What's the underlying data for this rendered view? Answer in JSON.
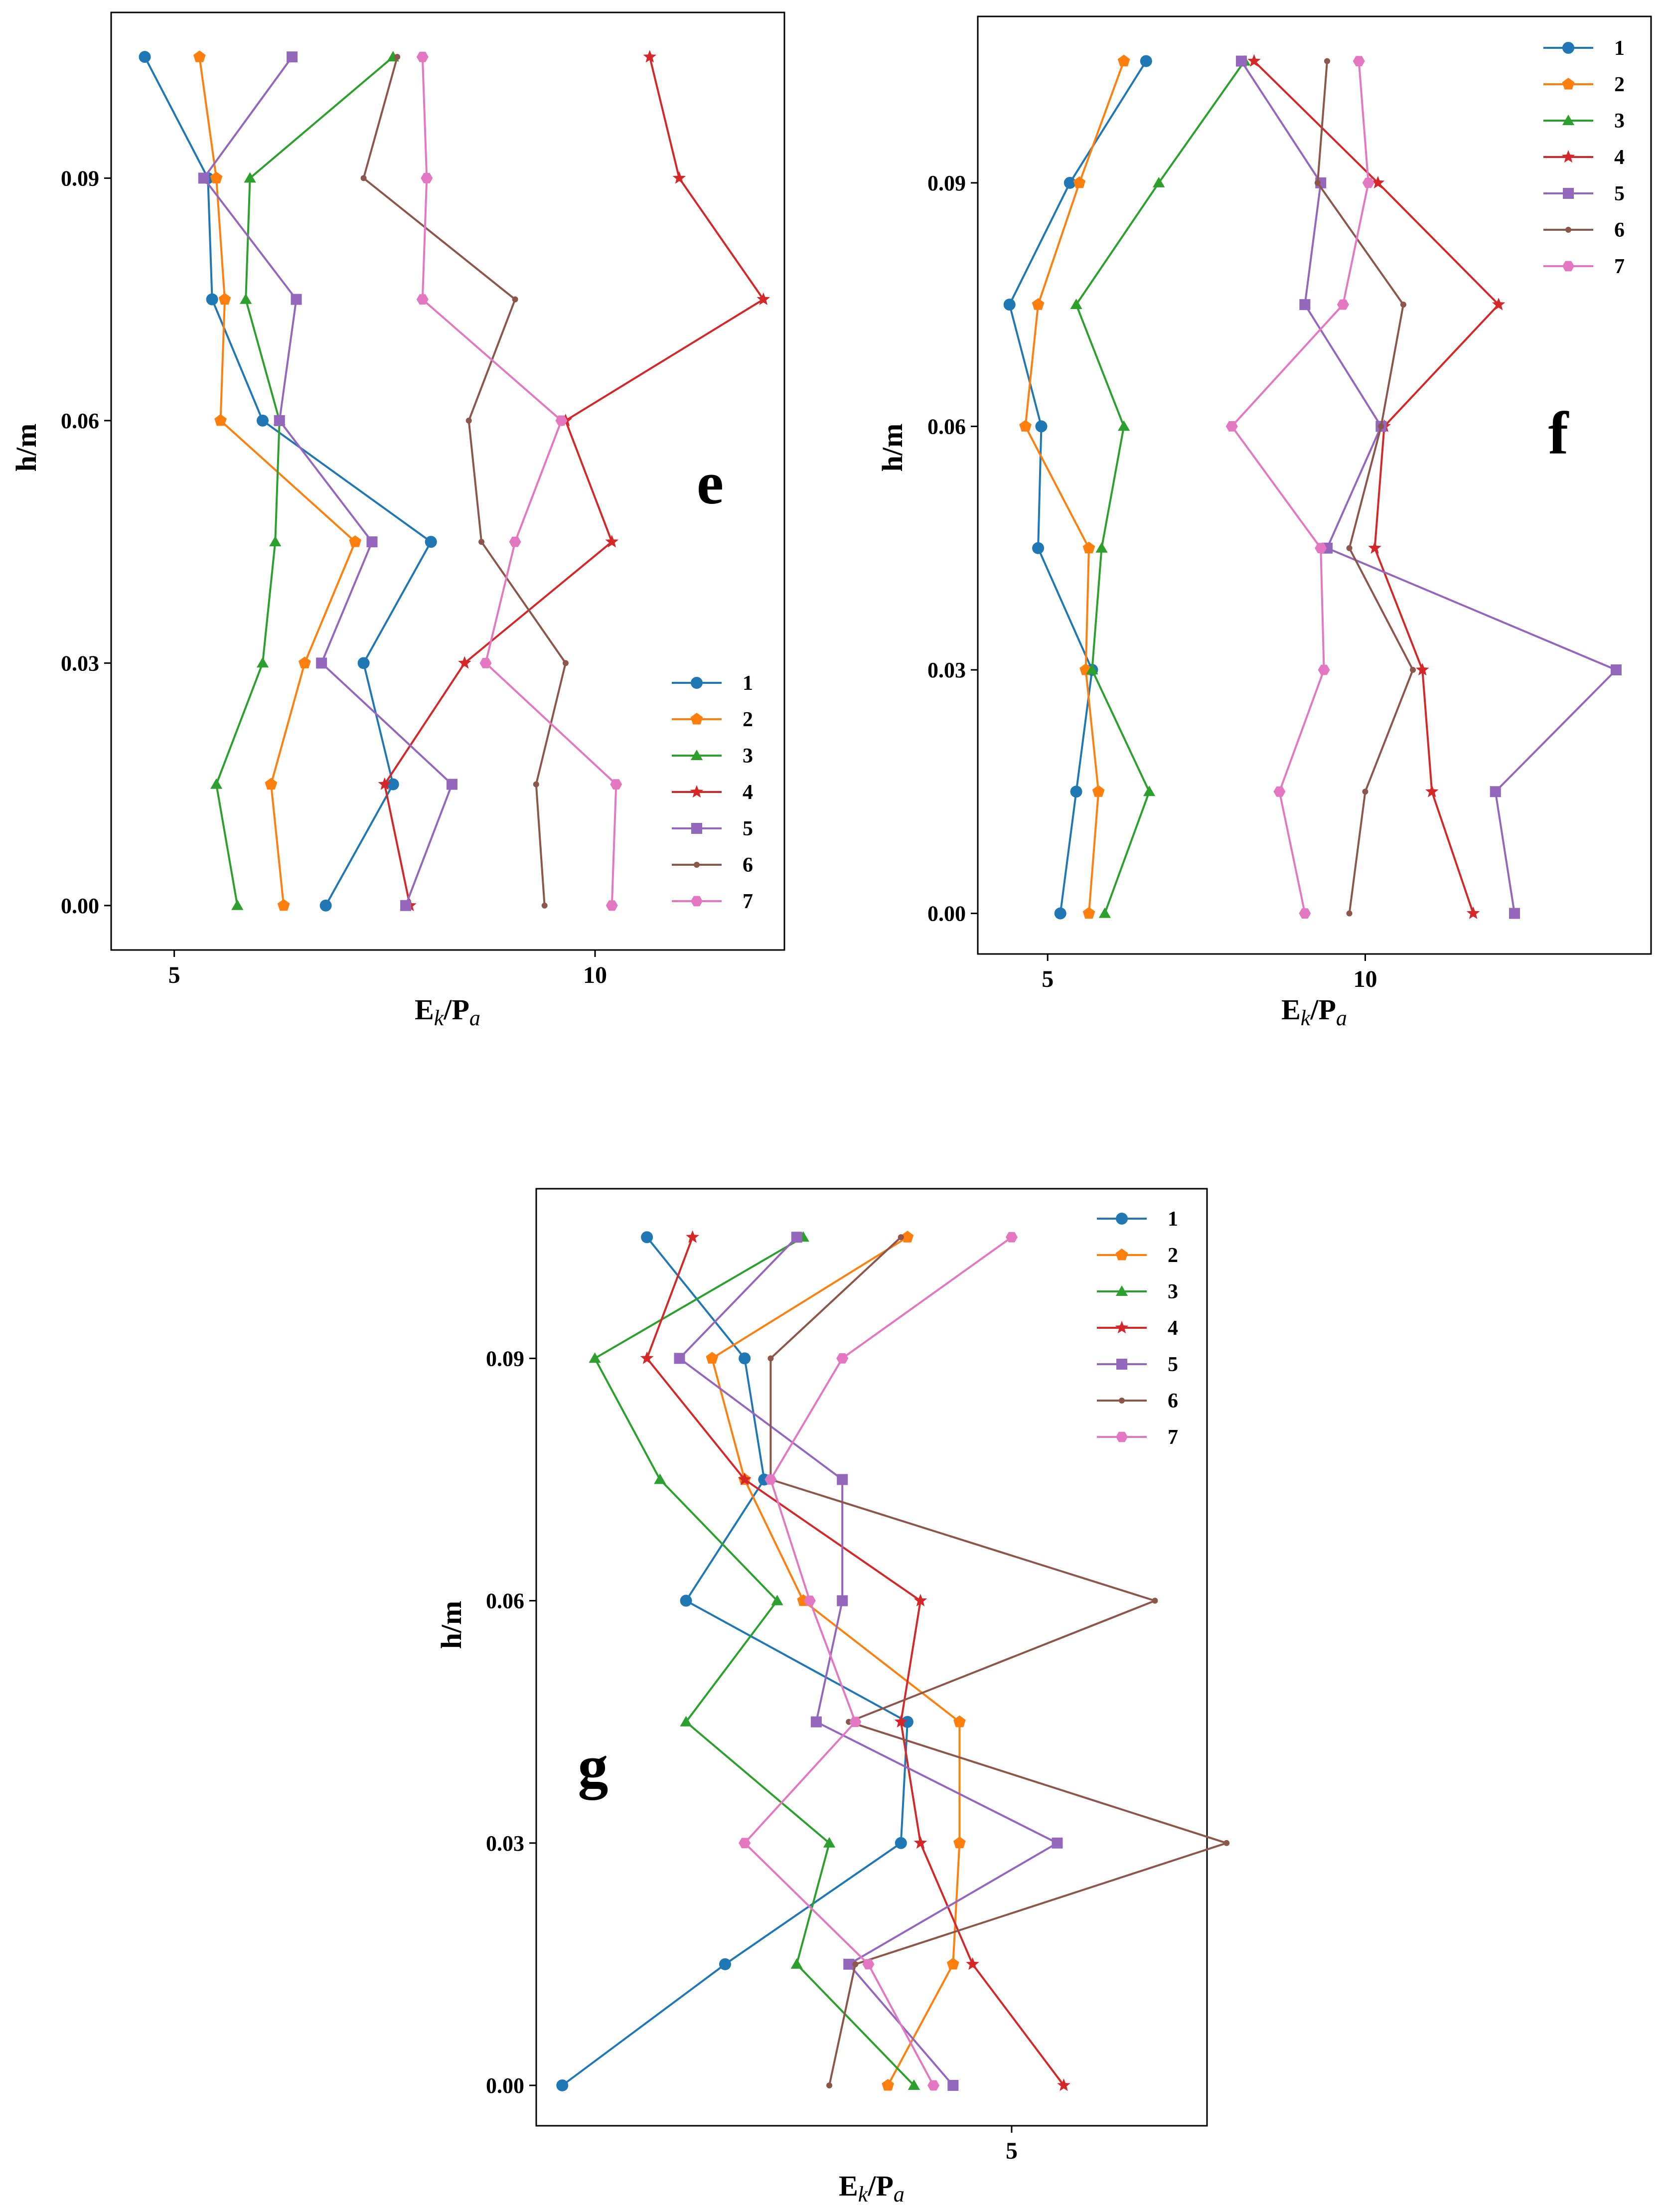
{
  "chart_data": [
    {
      "type": "line",
      "panel_label": "e",
      "xlabel": "Ek/Pa",
      "ylabel": "h/m",
      "xlim": [
        4.25,
        12.25
      ],
      "ylim": [
        -0.0055,
        0.1105
      ],
      "xticks": [
        5,
        10
      ],
      "yticks": [
        0.0,
        0.03,
        0.06,
        0.09
      ],
      "ytick_labels": [
        "0.00",
        "0.03",
        "0.06",
        "0.09"
      ],
      "legend_loc": "lower right",
      "h": [
        0.105,
        0.09,
        0.075,
        0.06,
        0.045,
        0.03,
        0.015,
        0.0
      ],
      "series": [
        {
          "name": "1",
          "values": [
            4.65,
            5.4,
            5.45,
            6.05,
            8.05,
            7.25,
            7.6,
            6.8
          ]
        },
        {
          "name": "2",
          "values": [
            5.3,
            5.5,
            5.6,
            5.55,
            7.15,
            6.55,
            6.15,
            6.3
          ]
        },
        {
          "name": "3",
          "values": [
            7.6,
            5.9,
            5.85,
            6.25,
            6.2,
            6.05,
            5.5,
            5.75
          ]
        },
        {
          "name": "4",
          "values": [
            10.65,
            11.0,
            12.0,
            9.65,
            10.2,
            8.45,
            7.5,
            7.8
          ]
        },
        {
          "name": "5",
          "values": [
            6.4,
            5.35,
            6.45,
            6.25,
            7.35,
            6.75,
            8.3,
            7.75
          ]
        },
        {
          "name": "6",
          "values": [
            7.65,
            7.25,
            9.05,
            8.5,
            8.65,
            9.65,
            9.3,
            9.4
          ]
        },
        {
          "name": "7",
          "values": [
            7.95,
            8.0,
            7.95,
            9.6,
            9.05,
            8.7,
            10.25,
            10.2
          ]
        }
      ]
    },
    {
      "type": "line",
      "panel_label": "f",
      "xlabel": "Ek/Pa",
      "ylabel": "h/m",
      "xlim": [
        3.9,
        14.5
      ],
      "ylim": [
        -0.005,
        0.1105
      ],
      "xticks": [
        5,
        10
      ],
      "yticks": [
        0.0,
        0.03,
        0.06,
        0.09
      ],
      "ytick_labels": [
        "0.00",
        "0.03",
        "0.06",
        "0.09"
      ],
      "legend_loc": "upper right",
      "h": [
        0.105,
        0.09,
        0.075,
        0.06,
        0.045,
        0.03,
        0.015,
        0.0
      ],
      "series": [
        {
          "name": "1",
          "values": [
            6.55,
            5.35,
            4.4,
            4.9,
            4.85,
            5.7,
            5.45,
            5.2
          ]
        },
        {
          "name": "2",
          "values": [
            6.2,
            5.5,
            4.85,
            4.65,
            5.65,
            5.6,
            5.8,
            5.65
          ]
        },
        {
          "name": "3",
          "values": [
            8.1,
            6.75,
            5.45,
            6.2,
            5.85,
            5.7,
            6.6,
            5.9
          ]
        },
        {
          "name": "4",
          "values": [
            8.25,
            10.2,
            12.1,
            10.3,
            10.15,
            10.9,
            11.05,
            11.7
          ]
        },
        {
          "name": "5",
          "values": [
            8.05,
            9.3,
            9.05,
            10.25,
            9.4,
            13.95,
            12.05,
            12.35
          ]
        },
        {
          "name": "6",
          "values": [
            9.4,
            9.25,
            10.6,
            10.25,
            9.75,
            10.75,
            10.0,
            9.75
          ]
        },
        {
          "name": "7",
          "values": [
            9.9,
            10.05,
            9.65,
            7.9,
            9.3,
            9.35,
            8.65,
            9.05
          ]
        }
      ]
    },
    {
      "type": "line",
      "panel_label": "g",
      "xlabel": "Ek/Pa",
      "ylabel": "h/m",
      "xlim": [
        1.35,
        6.5
      ],
      "ylim": [
        -0.005,
        0.111
      ],
      "xticks": [
        5
      ],
      "yticks": [
        0.0,
        0.03,
        0.06,
        0.09
      ],
      "ytick_labels": [
        "0.00",
        "0.03",
        "0.06",
        "0.09"
      ],
      "legend_loc": "upper right",
      "h": [
        0.105,
        0.09,
        0.075,
        0.06,
        0.045,
        0.03,
        0.015,
        0.0
      ],
      "series": [
        {
          "name": "1",
          "values": [
            2.2,
            2.95,
            3.1,
            2.5,
            4.2,
            4.15,
            2.8,
            1.55
          ]
        },
        {
          "name": "2",
          "values": [
            4.2,
            2.7,
            2.95,
            3.4,
            4.6,
            4.6,
            4.55,
            4.05
          ]
        },
        {
          "name": "3",
          "values": [
            3.4,
            1.8,
            2.3,
            3.2,
            2.5,
            3.6,
            3.35,
            4.25
          ]
        },
        {
          "name": "4",
          "values": [
            2.55,
            2.2,
            2.95,
            4.3,
            4.15,
            4.3,
            4.7,
            5.4
          ]
        },
        {
          "name": "5",
          "values": [
            3.35,
            2.45,
            3.7,
            3.7,
            3.5,
            5.35,
            3.75,
            4.55
          ]
        },
        {
          "name": "6",
          "values": [
            4.15,
            3.15,
            3.15,
            6.1,
            3.75,
            6.65,
            3.8,
            3.6
          ]
        },
        {
          "name": "7",
          "values": [
            5.0,
            3.7,
            3.15,
            3.45,
            3.8,
            2.95,
            3.9,
            4.4
          ]
        }
      ]
    }
  ],
  "series_styles": [
    {
      "name": "1",
      "color": "#1f77b4",
      "marker": "circle"
    },
    {
      "name": "2",
      "color": "#ff7f0e",
      "marker": "pentagon"
    },
    {
      "name": "3",
      "color": "#2ca02c",
      "marker": "triangle"
    },
    {
      "name": "4",
      "color": "#d62728",
      "marker": "star"
    },
    {
      "name": "5",
      "color": "#9467bd",
      "marker": "square"
    },
    {
      "name": "6",
      "color": "#8c564b",
      "marker": "point"
    },
    {
      "name": "7",
      "color": "#e377c2",
      "marker": "hexagon"
    }
  ]
}
